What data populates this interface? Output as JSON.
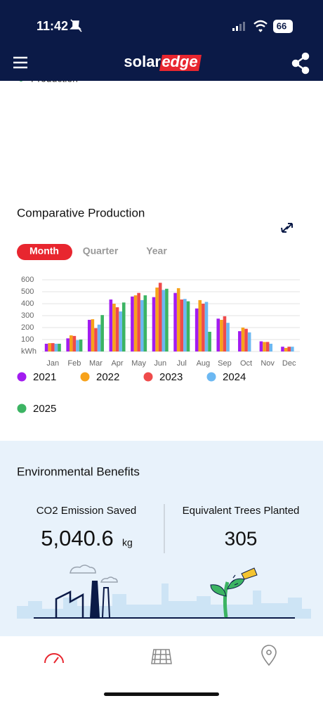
{
  "status_bar": {
    "time": "11:42",
    "battery": "66"
  },
  "header": {
    "logo_left": "solar",
    "logo_right": "edge"
  },
  "partial_legend": "Production",
  "tabs": [
    "Month",
    "Quarter",
    "Year"
  ],
  "chart_data": {
    "type": "bar",
    "title": "Comparative Production",
    "categories": [
      "Jan",
      "Feb",
      "Mar",
      "Apr",
      "May",
      "Jun",
      "Jul",
      "Aug",
      "Sep",
      "Oct",
      "Nov",
      "Dec"
    ],
    "series": [
      {
        "name": "2021",
        "color": "#a21cf0",
        "values": [
          65,
          110,
          265,
          435,
          460,
          455,
          490,
          360,
          275,
          170,
          85,
          40
        ]
      },
      {
        "name": "2022",
        "color": "#f7a21b",
        "values": [
          70,
          135,
          270,
          400,
          470,
          535,
          530,
          430,
          265,
          200,
          80,
          30
        ]
      },
      {
        "name": "2023",
        "color": "#ef4b4b",
        "values": [
          70,
          130,
          195,
          370,
          490,
          575,
          435,
          400,
          295,
          190,
          80,
          40
        ]
      },
      {
        "name": "2024",
        "color": "#6cb8f2",
        "values": [
          65,
          95,
          225,
          335,
          430,
          515,
          440,
          415,
          240,
          160,
          65,
          40
        ]
      },
      {
        "name": "2025",
        "color": "#3cb463",
        "values": [
          65,
          100,
          305,
          410,
          470,
          525,
          420,
          165,
          null,
          null,
          null,
          null
        ]
      }
    ],
    "ylim": [
      0,
      600
    ],
    "yticks": [
      {
        "value": 0,
        "label": "kWh"
      },
      100,
      200,
      300,
      400,
      500,
      600
    ],
    "grid": true
  },
  "environmental": {
    "title": "Environmental Benefits",
    "co2": {
      "label": "CO2 Emission Saved",
      "value": "5,040.6",
      "unit": "kg"
    },
    "trees": {
      "label": "Equivalent Trees Planted",
      "value": "305"
    }
  }
}
